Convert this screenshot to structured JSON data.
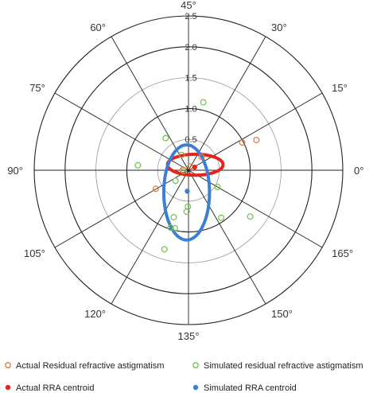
{
  "chart_data": {
    "type": "scatter",
    "coordinate_system": "polar",
    "r_ticks": [
      "0.5",
      "1.0",
      "1.5",
      "2.0",
      "2.5"
    ],
    "r_lim": [
      0,
      2.5
    ],
    "angle_labels": [
      {
        "deg": 0,
        "label": "0°"
      },
      {
        "deg": 15,
        "label": "15°"
      },
      {
        "deg": 30,
        "label": "30°"
      },
      {
        "deg": 45,
        "label": "45°"
      },
      {
        "deg": 60,
        "label": "60°"
      },
      {
        "deg": 75,
        "label": "75°"
      },
      {
        "deg": 90,
        "label": "90°"
      },
      {
        "deg": 105,
        "label": "105°"
      },
      {
        "deg": 120,
        "label": "120°"
      },
      {
        "deg": 135,
        "label": "135°"
      },
      {
        "deg": 150,
        "label": "150°"
      },
      {
        "deg": 165,
        "label": "165°"
      }
    ],
    "grid": true,
    "legend_position": "bottom",
    "series": [
      {
        "name": "Actual Residual refractive astigmatism",
        "marker": "open-circle",
        "color": "#d9773a",
        "points": [
          {
            "x": 1.1,
            "y": 0.49
          },
          {
            "x": 0.87,
            "y": 0.45
          },
          {
            "x": 0.21,
            "y": 0.22
          },
          {
            "x": 0.03,
            "y": 0.06
          },
          {
            "x": -0.09,
            "y": 0.01
          },
          {
            "x": -0.53,
            "y": -0.3
          }
        ]
      },
      {
        "name": "Simulated residual refractive astigmatism",
        "marker": "open-circle",
        "color": "#6cc24a",
        "points": [
          {
            "x": 0.24,
            "y": 1.1
          },
          {
            "x": -0.37,
            "y": 0.52
          },
          {
            "x": -0.11,
            "y": 0.25
          },
          {
            "x": -0.82,
            "y": 0.08
          },
          {
            "x": -0.08,
            "y": -0.01
          },
          {
            "x": -0.21,
            "y": -0.17
          },
          {
            "x": 0.47,
            "y": -0.27
          },
          {
            "x": -0.01,
            "y": -0.59
          },
          {
            "x": -0.03,
            "y": -0.67
          },
          {
            "x": 1.0,
            "y": -0.75
          },
          {
            "x": -0.24,
            "y": -0.76
          },
          {
            "x": 0.53,
            "y": -0.77
          },
          {
            "x": -0.22,
            "y": -0.94
          },
          {
            "x": -0.39,
            "y": -1.28
          },
          {
            "x": -0.29,
            "y": -0.93
          }
        ]
      },
      {
        "name": "Actual RRA centroid",
        "marker": "filled-circle",
        "color": "#e8231e",
        "points": [
          {
            "x": 0.1,
            "y": 0.05
          }
        ]
      },
      {
        "name": "Simulated RRA centroid",
        "marker": "filled-circle",
        "color": "#3a7fd5",
        "points": [
          {
            "x": -0.02,
            "y": -0.34
          }
        ]
      }
    ],
    "ellipses": [
      {
        "color": "#e8231e",
        "center": [
          0.11,
          0.09
        ],
        "rx": 0.45,
        "ry": 0.17,
        "rotation_deg": 0
      },
      {
        "color": "#3a7fd5",
        "center": [
          -0.03,
          -0.36
        ],
        "rx": 0.37,
        "ry": 0.77,
        "rotation_deg": 0
      }
    ]
  }
}
